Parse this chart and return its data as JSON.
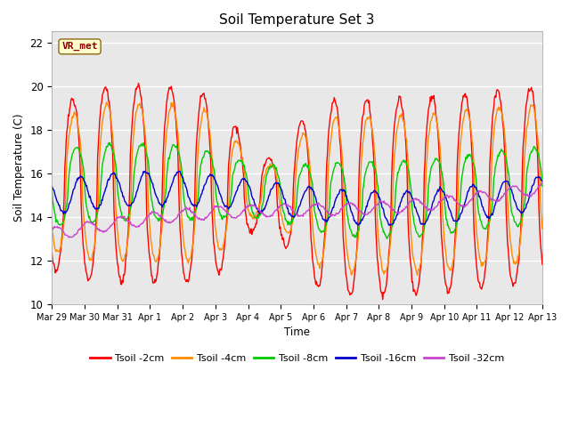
{
  "title": "Soil Temperature Set 3",
  "xlabel": "Time",
  "ylabel": "Soil Temperature (C)",
  "ylim": [
    10,
    22.5
  ],
  "bg_color": "#e8e8e8",
  "annotation_text": "VR_met",
  "annotation_color": "#8b0000",
  "annotation_bg": "#ffffcc",
  "annotation_border": "#8b6914",
  "series_colors": {
    "Tsoil -2cm": "#ff0000",
    "Tsoil -4cm": "#ff8c00",
    "Tsoil -8cm": "#00cc00",
    "Tsoil -16cm": "#0000cc",
    "Tsoil -32cm": "#cc44cc"
  },
  "tick_labels": [
    "Mar 29",
    "Mar 30",
    "Mar 31",
    "Apr 1",
    "Apr 2",
    "Apr 3",
    "Apr 4",
    "Apr 5",
    "Apr 6",
    "Apr 7",
    "Apr 8",
    "Apr 9",
    "Apr 10",
    "Apr 11",
    "Apr 12",
    "Apr 13"
  ],
  "yticks": [
    10,
    12,
    14,
    16,
    18,
    20,
    22
  ],
  "figsize": [
    6.4,
    4.8
  ],
  "dpi": 100
}
